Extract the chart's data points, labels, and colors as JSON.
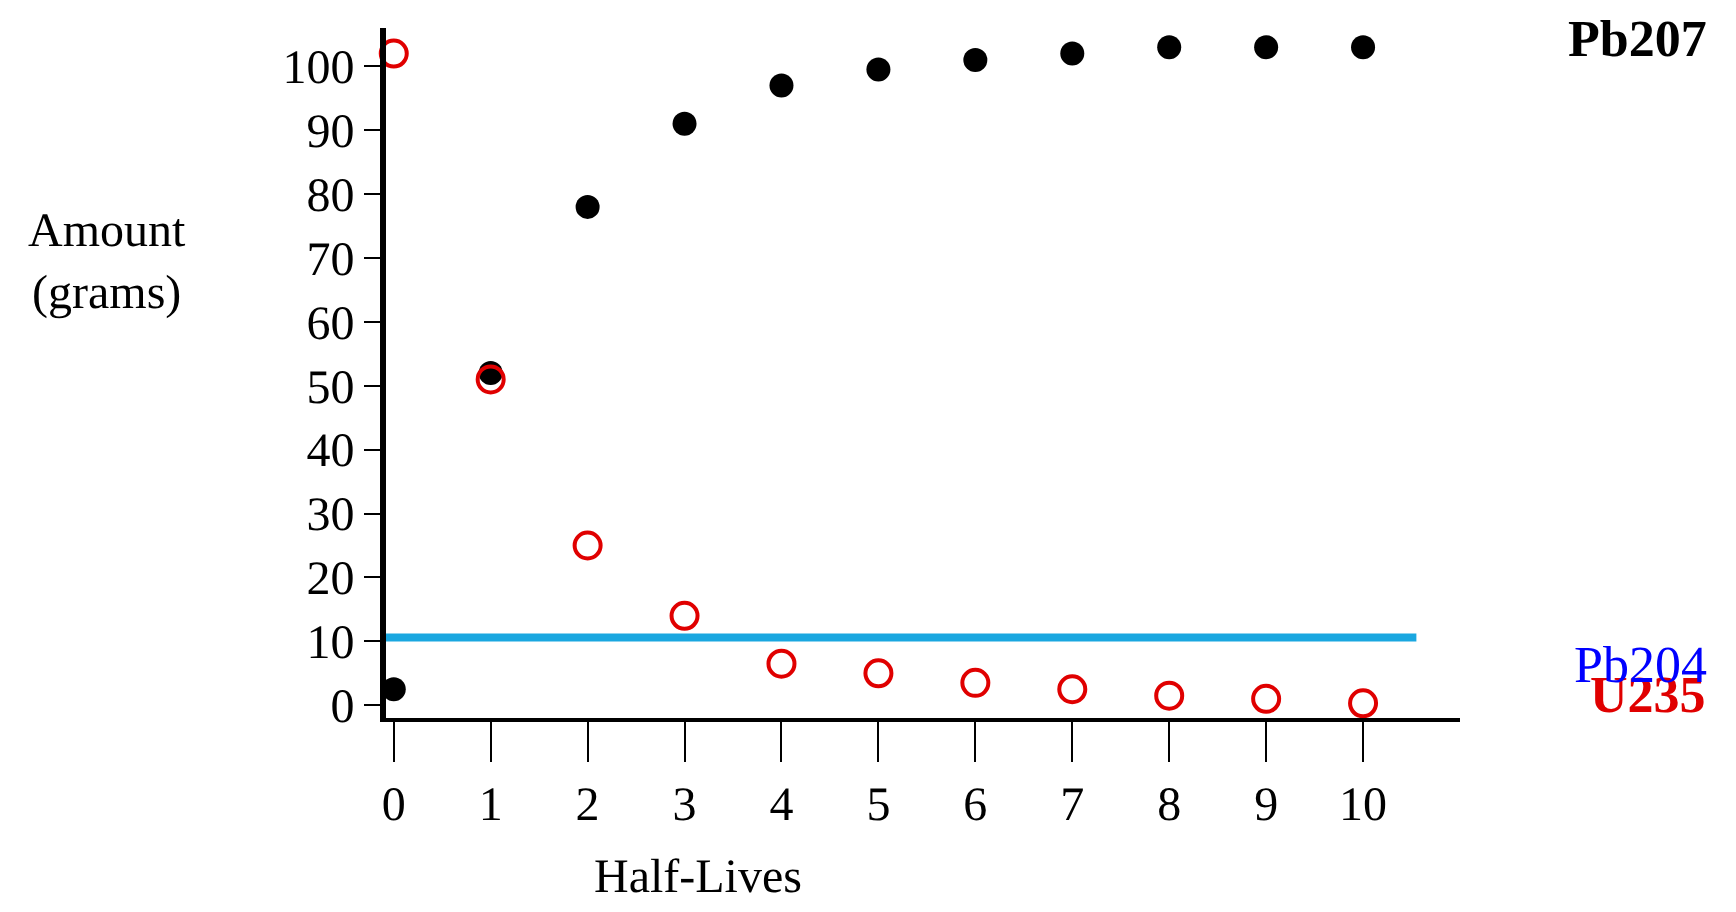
{
  "chart_data": {
    "type": "scatter",
    "xlabel": "Half-Lives",
    "ylabel": "Amount\n(grams)",
    "x": [
      0,
      1,
      2,
      3,
      4,
      5,
      6,
      7,
      8,
      9,
      10
    ],
    "series": [
      {
        "name": "Pb207",
        "color": "#000000",
        "values": [
          2.5,
          52,
          78,
          91,
          97,
          99.5,
          101,
          102,
          103,
          103,
          103
        ]
      },
      {
        "name": "U235",
        "color": "#e00000",
        "values": [
          102,
          51,
          25,
          14,
          6.5,
          5,
          3.5,
          2.5,
          1.5,
          1,
          0.3
        ]
      },
      {
        "name": "Pb204",
        "type": "line",
        "marker": "none",
        "color": "#1aa7e0",
        "x": [
          -0.08,
          10.55
        ],
        "values": [
          10.6,
          10.6
        ]
      }
    ],
    "xlim": [
      -0.08,
      11
    ],
    "ylim": [
      -2,
      106
    ],
    "xticks": [
      0,
      1,
      2,
      3,
      4,
      5,
      6,
      7,
      8,
      9,
      10
    ],
    "yticks": [
      0,
      10,
      20,
      30,
      40,
      50,
      60,
      70,
      80,
      90,
      100
    ],
    "marker": "circle",
    "grid": false,
    "legend": false
  }
}
